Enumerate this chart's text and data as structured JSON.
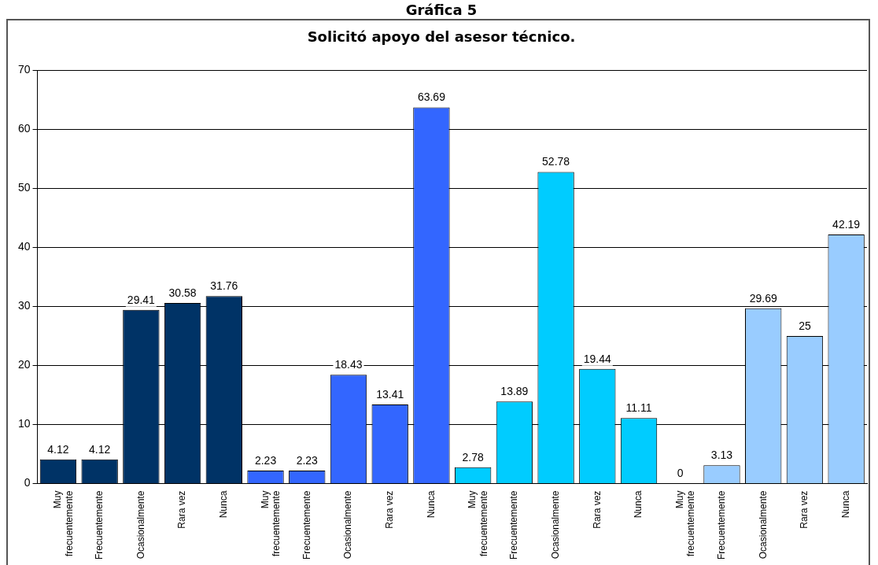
{
  "chart_data": {
    "type": "bar",
    "title": "Gráfica 5",
    "subtitle": "Solicitó apoyo del asesor técnico.",
    "categories": [
      "Muy frecuentemente",
      "Frecuentemente",
      "Ocasionalmente",
      "Rara vez",
      "Nunca",
      "Muy frecuentemente",
      "Frecuentemente",
      "Ocasionalmente",
      "Rara vez",
      "Nunca",
      "Muy frecuentemente",
      "Frecuentemente",
      "Ocasionalmente",
      "Rara vez",
      "Nunca",
      "Muy frecuentemente",
      "Frecuentemente",
      "Ocasionalmente",
      "Rara vez",
      "Nunca"
    ],
    "values": [
      4.12,
      4.12,
      29.41,
      30.58,
      31.76,
      2.23,
      2.23,
      18.43,
      13.41,
      63.69,
      2.78,
      13.89,
      52.78,
      19.44,
      11.11,
      0,
      3.13,
      29.69,
      25,
      42.19
    ],
    "colors": [
      "#003366",
      "#003366",
      "#003366",
      "#003366",
      "#003366",
      "#3366ff",
      "#3366ff",
      "#3366ff",
      "#3366ff",
      "#3366ff",
      "#00ccff",
      "#00ccff",
      "#00ccff",
      "#00ccff",
      "#00ccff",
      "#99ccff",
      "#99ccff",
      "#99ccff",
      "#99ccff",
      "#99ccff"
    ],
    "ylim": [
      0,
      70
    ],
    "yticks": [
      0,
      10,
      20,
      30,
      40,
      50,
      60,
      70
    ],
    "grid": "y",
    "data_labels": true,
    "legend": false
  }
}
